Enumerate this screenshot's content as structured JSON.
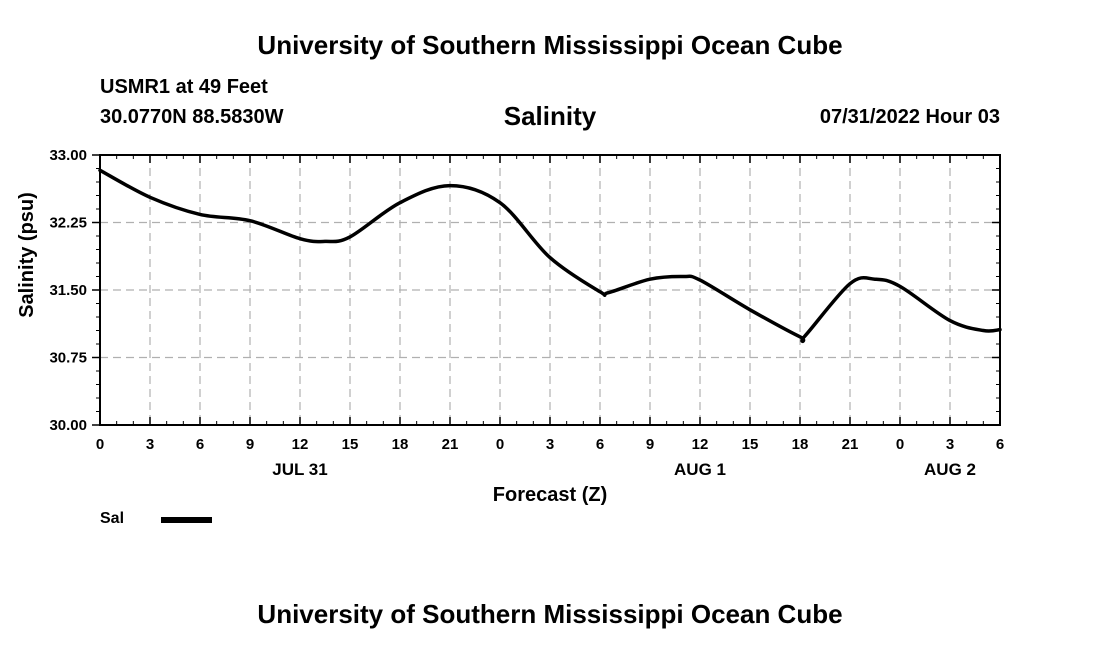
{
  "header": {
    "org_title": "University of Southern Mississippi Ocean Cube",
    "station": "USMR1 at 49 Feet",
    "coordinates": "30.0770N  88.5830W",
    "valid_time": "07/31/2022 Hour 03"
  },
  "footer": {
    "org_title": "University of Southern Mississippi Ocean Cube"
  },
  "legend": {
    "label": "Sal",
    "color": "#000000"
  },
  "chart_data": {
    "type": "line",
    "title": "Salinity",
    "ylabel": "Salinity (psu)",
    "xlabel": "Forecast (Z)",
    "ylim": [
      30.0,
      33.0
    ],
    "xlim": [
      0,
      54
    ],
    "y_ticks": [
      "30.00",
      "30.75",
      "31.50",
      "32.25",
      "33.00"
    ],
    "x_ticks": [
      {
        "h": 0,
        "label": "0"
      },
      {
        "h": 3,
        "label": "3"
      },
      {
        "h": 6,
        "label": "6"
      },
      {
        "h": 9,
        "label": "9"
      },
      {
        "h": 12,
        "label": "12"
      },
      {
        "h": 15,
        "label": "15"
      },
      {
        "h": 18,
        "label": "18"
      },
      {
        "h": 21,
        "label": "21"
      },
      {
        "h": 24,
        "label": "0"
      },
      {
        "h": 27,
        "label": "3"
      },
      {
        "h": 30,
        "label": "6"
      },
      {
        "h": 33,
        "label": "9"
      },
      {
        "h": 36,
        "label": "12"
      },
      {
        "h": 39,
        "label": "15"
      },
      {
        "h": 42,
        "label": "18"
      },
      {
        "h": 45,
        "label": "21"
      },
      {
        "h": 48,
        "label": "0"
      },
      {
        "h": 51,
        "label": "3"
      },
      {
        "h": 54,
        "label": "6"
      }
    ],
    "date_labels": [
      {
        "h": 12,
        "label": "JUL 31"
      },
      {
        "h": 36,
        "label": "AUG 1"
      },
      {
        "h": 51,
        "label": "AUG 2"
      }
    ],
    "grid": true,
    "series": [
      {
        "name": "Sal",
        "x": [
          0,
          3,
          6,
          9,
          12,
          13.5,
          15,
          18,
          21,
          24,
          27,
          30,
          30.5,
          33,
          35,
          36,
          39,
          42,
          42.3,
          45,
          46.5,
          48,
          51,
          53,
          54
        ],
        "values": [
          32.83,
          32.53,
          32.34,
          32.27,
          32.07,
          32.04,
          32.09,
          32.47,
          32.66,
          32.47,
          31.86,
          31.48,
          31.47,
          31.62,
          31.65,
          31.61,
          31.28,
          30.98,
          30.99,
          31.57,
          31.62,
          31.54,
          31.16,
          31.05,
          31.06
        ]
      }
    ]
  }
}
